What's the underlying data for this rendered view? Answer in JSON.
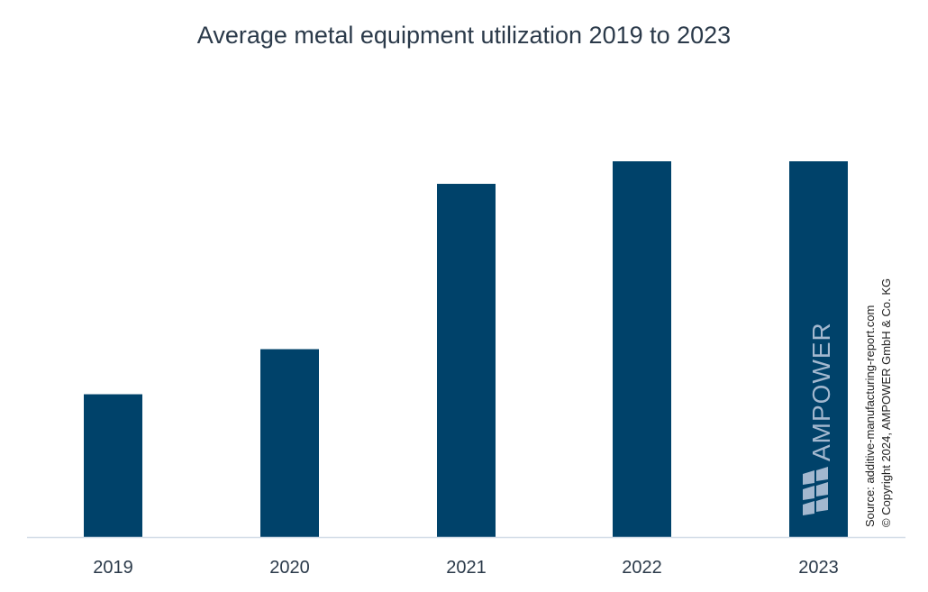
{
  "chart_data": {
    "type": "bar",
    "title": "Average metal equipment utilization 2019 to 2023",
    "categories": [
      "2019",
      "2020",
      "2021",
      "2022",
      "2023"
    ],
    "values": [
      0.38,
      0.5,
      0.94,
      1.0,
      1.0
    ],
    "ylim": [
      0,
      1.0
    ],
    "xlabel": "",
    "ylabel": "",
    "grid": false,
    "bar_color": "#00426a"
  },
  "watermark": {
    "logo_text": "AMPOWER",
    "color": "#a3b8cf"
  },
  "source": {
    "line1": "Source: additive-manufacturing-report.com",
    "line2": "© Copyright 2024, AMPOWER GmbH & Co. KG"
  }
}
